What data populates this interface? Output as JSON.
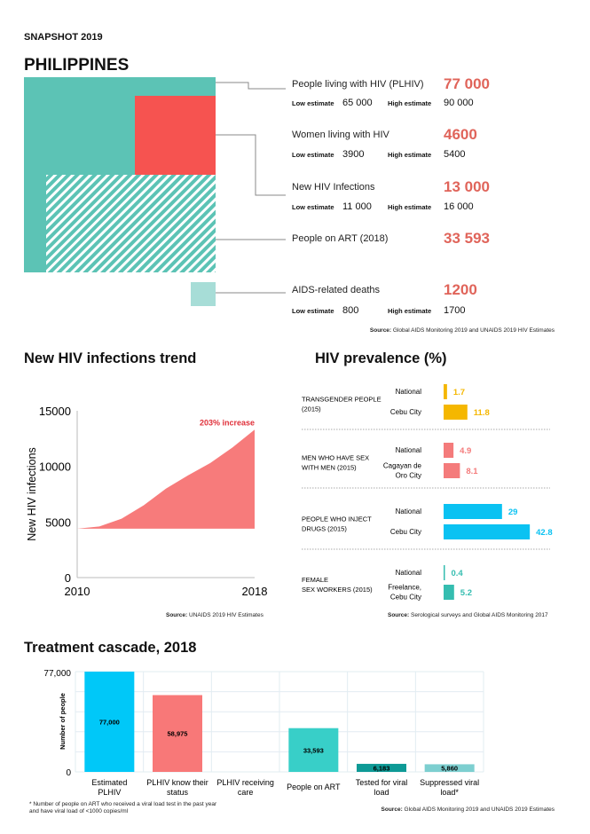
{
  "header": {
    "snapshot": "SNAPSHOT 2019",
    "country": "PHILIPPINES"
  },
  "colors": {
    "teal": "#5cc3b5",
    "red": "#f65350",
    "light_teal": "#a7ddd7",
    "accent_number": "#e0645a"
  },
  "key_figures": [
    {
      "label": "People living with HIV (PLHIV)",
      "value": "77 000",
      "low_label": "Low estimate",
      "low": "65 000",
      "high_label": "High estimate",
      "high": "90 000"
    },
    {
      "label": "Women living with HIV",
      "value": "4600",
      "low_label": "Low estimate",
      "low": "3900",
      "high_label": "High estimate",
      "high": "5400"
    },
    {
      "label": "New HIV Infections",
      "value": "13 000",
      "low_label": "Low estimate",
      "low": "11 000",
      "high_label": "High estimate",
      "high": "16 000"
    },
    {
      "label": "People on ART (2018)",
      "value": "33 593"
    },
    {
      "label": "AIDS-related deaths",
      "value": "1200",
      "low_label": "Low estimate",
      "low": "800",
      "high_label": "High estimate",
      "high": "1700"
    }
  ],
  "key_source": {
    "bold": "Source:",
    "text": " Global AIDS Monitoring 2019 and UNAIDS 2019 HIV Estimates"
  },
  "chart_data": [
    {
      "type": "area",
      "title": "New HIV infections trend",
      "ylabel": "New HIV infections",
      "xlabel": "",
      "x": [
        2010,
        2011,
        2012,
        2013,
        2014,
        2015,
        2016,
        2017,
        2018
      ],
      "y": [
        4400,
        4600,
        5300,
        6500,
        8000,
        9200,
        10300,
        11700,
        13300
      ],
      "baseline": 4400,
      "ylim": [
        0,
        15000
      ],
      "yticks": [
        "0",
        "5000",
        "10000",
        "15000"
      ],
      "xticks": [
        "2010",
        "2018"
      ],
      "annotation": "203% increase",
      "color": "#f77b7b",
      "annotation_color": "#e0303a",
      "source": {
        "bold": "Source:",
        "text": " UNAIDS 2019 HIV Estimates"
      }
    },
    {
      "type": "bar",
      "title": "HIV prevalence (%)",
      "orientation": "horizontal",
      "groups": [
        {
          "name": "TRANSGENDER PEOPLE (2015)",
          "color": "#f5b700",
          "bars": [
            {
              "label": "National",
              "value": 1.7,
              "text": "1.7"
            },
            {
              "label": "Cebu City",
              "value": 11.8,
              "text": "11.8"
            }
          ]
        },
        {
          "name": "MEN WHO HAVE SEX WITH MEN (2015)",
          "color": "#f47b7b",
          "bars": [
            {
              "label": "National",
              "value": 4.9,
              "text": "4.9"
            },
            {
              "label": "Cagayan de Oro City",
              "value": 8.1,
              "text": "8.1"
            }
          ]
        },
        {
          "name": "PEOPLE WHO INJECT DRUGS (2015)",
          "color": "#0ac2f2",
          "bars": [
            {
              "label": "National",
              "value": 29,
              "text": "29"
            },
            {
              "label": "Cebu City",
              "value": 42.8,
              "text": "42.8"
            }
          ]
        },
        {
          "name": "FEMALE SEX WORKERS (2015)",
          "color": "#35bdb0",
          "bars": [
            {
              "label": "National",
              "value": 0.4,
              "text": "0.4"
            },
            {
              "label": "Freelance, Cebu City",
              "value": 5.2,
              "text": "5.2"
            }
          ]
        }
      ],
      "source": {
        "bold": "Source:",
        "text": " Serological surveys and Global AIDS Monitoring 2017"
      }
    },
    {
      "type": "bar",
      "title": "Treatment cascade, 2018",
      "ylabel": "Number of people",
      "ylim": [
        0,
        77000
      ],
      "yticks": [
        "0",
        "77,000"
      ],
      "categories": [
        "Estimated PLHIV",
        "PLHIV know their status",
        "PLHIV receiving care",
        "People on ART",
        "Tested for viral load",
        "Suppressed viral load*"
      ],
      "values": [
        77000,
        58975,
        null,
        33593,
        6183,
        5860
      ],
      "labels": [
        "77,000",
        "58,975",
        "",
        "33,593",
        "6,183",
        "5,860"
      ],
      "colors": [
        "#00c8f8",
        "#f87878",
        "#cccccc",
        "#38cfc8",
        "#0e9a96",
        "#7dcfd0"
      ],
      "footnote": "* Number of people on ART who received a viral load test in the past year and have viral load of <1000 copies/ml",
      "source": {
        "bold": "Source:",
        "text": " Global AIDS Monitoring 2019 and UNAIDS 2019 Estimates"
      }
    }
  ]
}
